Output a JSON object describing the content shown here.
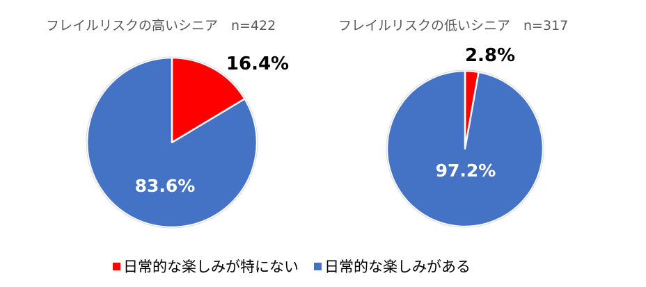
{
  "colors": {
    "not_have": "#FF0000",
    "have": "#4472C4",
    "outline": "#FFFFFF",
    "title_text": "#595959",
    "label_dark": "#000000",
    "label_light": "#FFFFFF"
  },
  "chart_data": [
    {
      "type": "pie",
      "title": "フレイルリスクの高いシニア　n=422",
      "categories": [
        "日常的な楽しみが特にない",
        "日常的な楽しみがある"
      ],
      "values": [
        16.4,
        83.6
      ],
      "labels": [
        "16.4%",
        "83.6%"
      ]
    },
    {
      "type": "pie",
      "title": "フレイルリスクの低いシニア　n=317",
      "categories": [
        "日常的な楽しみが特にない",
        "日常的な楽しみがある"
      ],
      "values": [
        2.8,
        97.2
      ],
      "labels": [
        "2.8%",
        "97.2%"
      ]
    }
  ],
  "legend": [
    {
      "label": "日常的な楽しみが特にない",
      "color": "#FF0000"
    },
    {
      "label": "日常的な楽しみがある",
      "color": "#4472C4"
    }
  ]
}
